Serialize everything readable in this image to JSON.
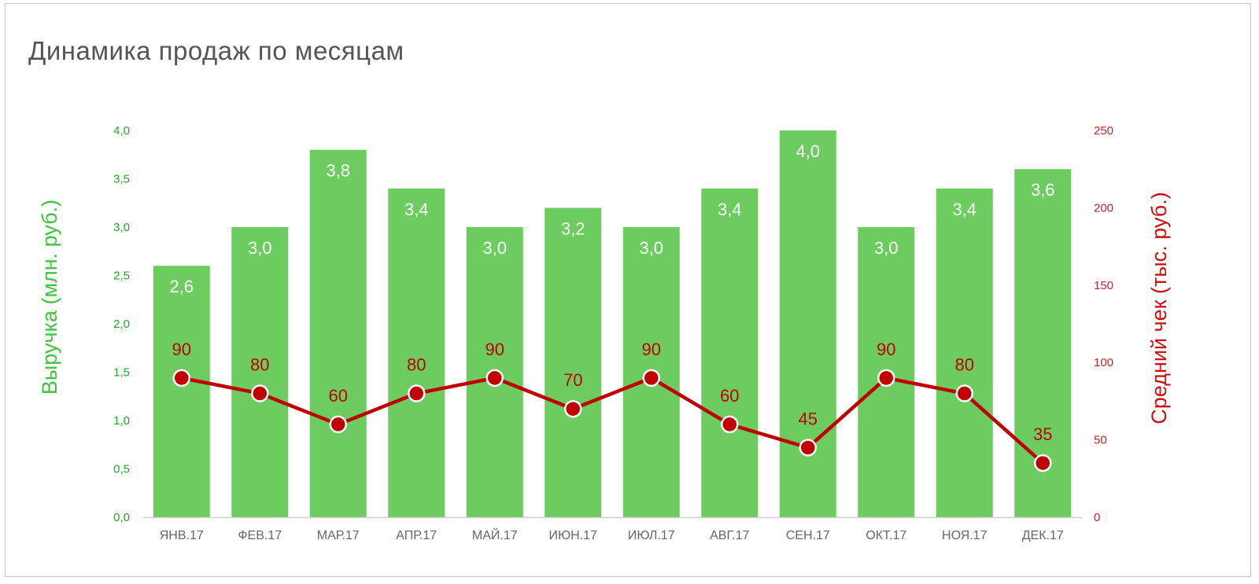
{
  "chart_data": {
    "type": "bar",
    "title": "Динамика продаж по месяцам",
    "categories": [
      "ЯНВ.17",
      "ФЕВ.17",
      "МАР.17",
      "АПР.17",
      "МАЙ.17",
      "ИЮН.17",
      "ИЮЛ.17",
      "АВГ.17",
      "СЕН.17",
      "ОКТ.17",
      "НОЯ.17",
      "ДЕК.17"
    ],
    "series": [
      {
        "name": "Выручка (млн. руб.)",
        "type": "bar",
        "axis": "left",
        "values": [
          2.6,
          3.0,
          3.8,
          3.4,
          3.0,
          3.2,
          3.0,
          3.4,
          4.0,
          3.0,
          3.4,
          3.6
        ],
        "labels": [
          "2,6",
          "3,0",
          "3,8",
          "3,4",
          "3,0",
          "3,2",
          "3,0",
          "3,4",
          "4,0",
          "3,0",
          "3,4",
          "3,6"
        ]
      },
      {
        "name": "Средний чек (тыс. руб.)",
        "type": "line",
        "axis": "right",
        "values": [
          90,
          80,
          60,
          80,
          90,
          70,
          90,
          60,
          45,
          90,
          80,
          35
        ],
        "labels": [
          "90",
          "80",
          "60",
          "80",
          "90",
          "70",
          "90",
          "60",
          "45",
          "90",
          "80",
          "35"
        ]
      }
    ],
    "ylabel": "Выручка (млн. руб.)",
    "y2label": "Средний чек (тыс. руб.)",
    "ylim": [
      0,
      4
    ],
    "y2lim": [
      0,
      250
    ],
    "yticks": [
      "0,0",
      "0,5",
      "1,0",
      "1,5",
      "2,0",
      "2,5",
      "3,0",
      "3,5",
      "4,0"
    ],
    "y2ticks": [
      "0",
      "50",
      "100",
      "150",
      "200",
      "250"
    ],
    "grid": false,
    "legend": "none",
    "colors": {
      "bar": "#6dcc5f",
      "line": "#c00000",
      "marker_edge": "#ffffff",
      "left_axis": "#22aa22",
      "right_axis": "#cc2222"
    }
  }
}
